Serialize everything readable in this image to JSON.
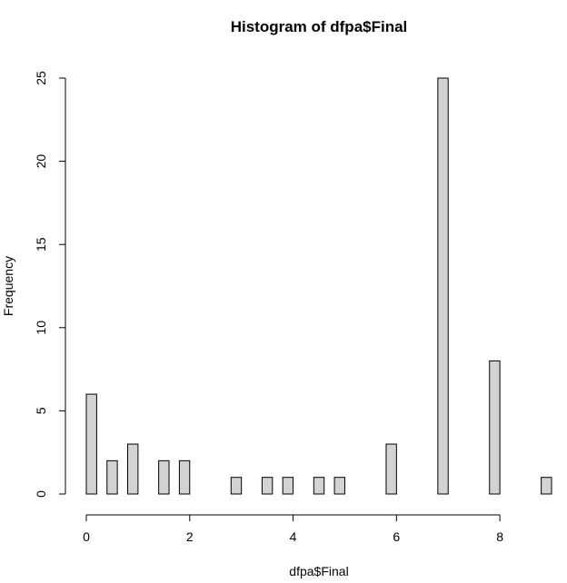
{
  "chart_data": {
    "type": "bar",
    "title": "Histogram of dfpa$Final",
    "xlabel": "dfpa$Final",
    "ylabel": "Frequency",
    "xlim": [
      0,
      9
    ],
    "ylim": [
      0,
      25
    ],
    "x_ticks": [
      0,
      2,
      4,
      6,
      8
    ],
    "y_ticks": [
      0,
      5,
      10,
      15,
      20,
      25
    ],
    "bin_width": 0.2,
    "bins": [
      {
        "start": 0.0,
        "end": 0.2,
        "count": 6
      },
      {
        "start": 0.4,
        "end": 0.6,
        "count": 2
      },
      {
        "start": 0.8,
        "end": 1.0,
        "count": 3
      },
      {
        "start": 1.4,
        "end": 1.6,
        "count": 2
      },
      {
        "start": 1.8,
        "end": 2.0,
        "count": 2
      },
      {
        "start": 2.8,
        "end": 3.0,
        "count": 1
      },
      {
        "start": 3.4,
        "end": 3.6,
        "count": 1
      },
      {
        "start": 3.8,
        "end": 4.0,
        "count": 1
      },
      {
        "start": 4.4,
        "end": 4.6,
        "count": 1
      },
      {
        "start": 4.8,
        "end": 5.0,
        "count": 1
      },
      {
        "start": 5.8,
        "end": 6.0,
        "count": 3
      },
      {
        "start": 6.8,
        "end": 7.0,
        "count": 25
      },
      {
        "start": 7.8,
        "end": 8.0,
        "count": 8
      },
      {
        "start": 8.8,
        "end": 9.0,
        "count": 1
      }
    ],
    "bar_fill": "#d3d3d3",
    "bar_stroke": "#000000",
    "grid": false,
    "legend": "none"
  }
}
